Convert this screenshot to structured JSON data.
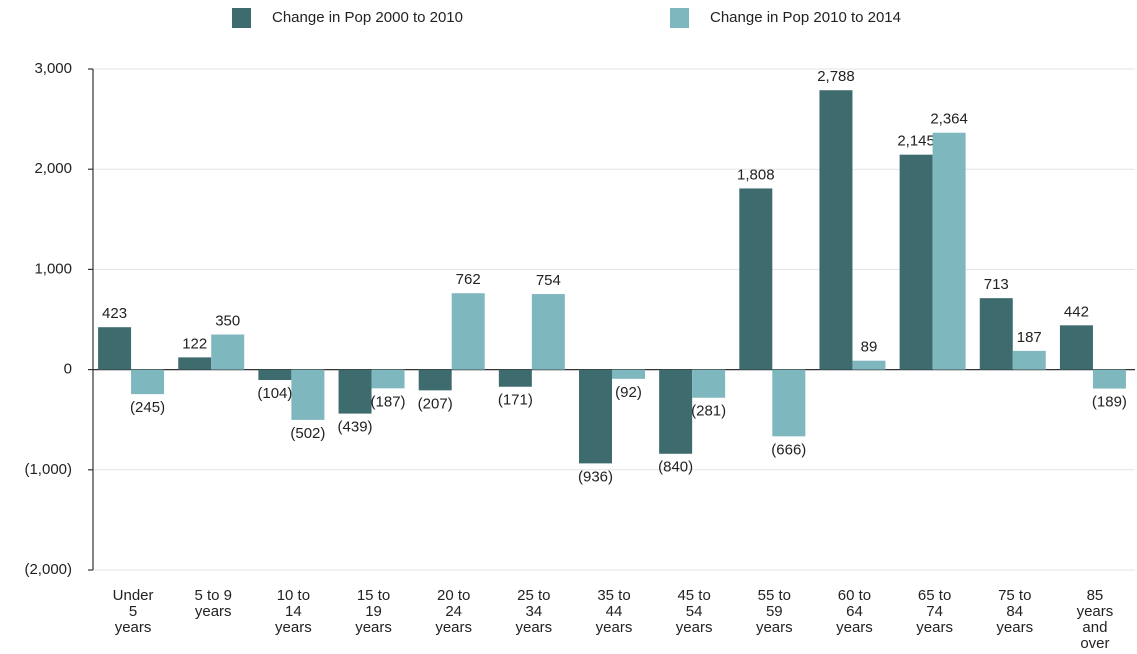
{
  "chart_data": {
    "type": "bar",
    "categories": [
      "Under\n5\nyears",
      "5 to 9\nyears",
      "10 to\n14\nyears",
      "15 to\n19\nyears",
      "20 to\n24\nyears",
      "25 to\n34\nyears",
      "35 to\n44\nyears",
      "45 to\n54\nyears",
      "55 to\n59\nyears",
      "60 to\n64\nyears",
      "65 to\n74\nyears",
      "75 to\n84\nyears",
      "85\nyears\nand\nover"
    ],
    "series": [
      {
        "name": "Change in Pop 2000 to 2010",
        "color": "#3d6b6e",
        "values": [
          423,
          122,
          -104,
          -439,
          -207,
          -171,
          -936,
          -840,
          1808,
          2788,
          2145,
          713,
          442
        ],
        "value_labels": [
          "423",
          "122",
          "(104)",
          "(439)",
          "(207)",
          "(171)",
          "(936)",
          "(840)",
          "1,808",
          "2,788",
          "2,145",
          "713",
          "442"
        ]
      },
      {
        "name": "Change in Pop 2010 to 2014",
        "color": "#7fb7bf",
        "values": [
          -245,
          350,
          -502,
          -187,
          762,
          754,
          -92,
          -281,
          -666,
          89,
          2364,
          187,
          -189
        ],
        "value_labels": [
          "(245)",
          "350",
          "(502)",
          "(187)",
          "762",
          "754",
          "(92)",
          "(281)",
          "(666)",
          "89",
          "2,364",
          "187",
          "(189)"
        ]
      }
    ],
    "ylim": [
      -2000,
      3000
    ],
    "yticks": [
      {
        "value": -2000,
        "label": "(2,000)"
      },
      {
        "value": -1000,
        "label": "(1,000)"
      },
      0,
      {
        "value": 1000,
        "label": "1,000"
      },
      {
        "value": 2000,
        "label": "2,000"
      },
      {
        "value": 3000,
        "label": "3,000"
      }
    ],
    "grid": true,
    "legend": "top"
  }
}
